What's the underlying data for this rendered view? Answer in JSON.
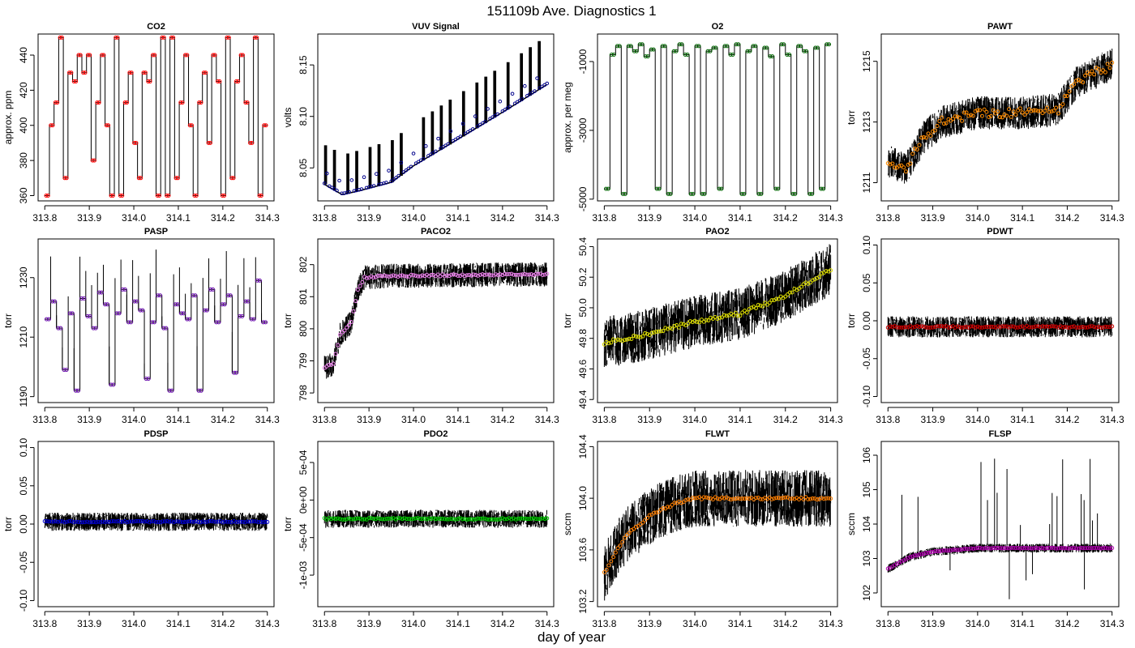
{
  "figure": {
    "title": "151109b   Ave. Diagnostics 1",
    "xlabel": "day of year"
  },
  "colors": {
    "frame": "#000000",
    "trace": "#000000"
  },
  "chart_data": [
    {
      "type": "line",
      "title": "CO2",
      "ylabel": "approx. ppm",
      "xlim": [
        313.785,
        314.315
      ],
      "ylim": [
        357,
        452
      ],
      "xticks": [
        {
          "v": 313.8,
          "l": "313.8"
        },
        {
          "v": 313.9,
          "l": "313.9"
        },
        {
          "v": 314.0,
          "l": "314.0"
        },
        {
          "v": 314.1,
          "l": "314.1"
        },
        {
          "v": 314.2,
          "l": "314.2"
        },
        {
          "v": 314.3,
          "l": "314.3"
        }
      ],
      "yticks": [
        {
          "v": 360,
          "l": "360"
        },
        {
          "v": 380,
          "l": "380"
        },
        {
          "v": 400,
          "l": "400"
        },
        {
          "v": 420,
          "l": "420"
        },
        {
          "v": 440,
          "l": "440"
        }
      ],
      "mean_color": "#ff0000",
      "trace": "step",
      "levels": [
        360,
        400,
        413,
        450,
        370,
        430,
        425,
        440,
        430,
        440,
        380,
        413,
        440,
        400,
        360,
        450,
        360,
        413,
        430,
        390,
        370,
        430,
        425,
        440,
        360,
        450,
        360,
        450,
        370,
        413,
        440,
        400,
        360,
        413,
        430,
        390,
        440,
        425,
        360,
        450,
        370,
        425,
        440,
        413,
        390,
        450,
        360,
        400
      ]
    },
    {
      "type": "line",
      "title": "VUV Signal",
      "ylabel": "volts",
      "xlim": [
        313.785,
        314.315
      ],
      "ylim": [
        8.018,
        8.18
      ],
      "xticks": [
        {
          "v": 313.8,
          "l": "313.8"
        },
        {
          "v": 313.9,
          "l": "313.9"
        },
        {
          "v": 314.0,
          "l": "314.0"
        },
        {
          "v": 314.1,
          "l": "314.1"
        },
        {
          "v": 314.2,
          "l": "314.2"
        },
        {
          "v": 314.3,
          "l": "314.3"
        }
      ],
      "yticks": [
        {
          "v": 8.05,
          "l": "8.05"
        },
        {
          "v": 8.1,
          "l": "8.10"
        },
        {
          "v": 8.15,
          "l": "8.15"
        }
      ],
      "mean_color": "#00008b",
      "trace": "vuv",
      "base": [
        [
          313.8,
          8.034
        ],
        [
          313.84,
          8.024
        ],
        [
          313.88,
          8.028
        ],
        [
          313.95,
          8.036
        ],
        [
          314.0,
          8.052
        ],
        [
          314.1,
          8.078
        ],
        [
          314.2,
          8.104
        ],
        [
          314.3,
          8.131
        ]
      ],
      "spike_times": [
        313.8,
        313.82,
        313.85,
        313.87,
        313.9,
        313.92,
        313.95,
        313.97,
        314.02,
        314.04,
        314.06,
        314.08,
        314.11,
        314.14,
        314.16,
        314.18,
        314.21,
        314.24,
        314.26,
        314.28
      ]
    },
    {
      "type": "line",
      "title": "O2",
      "ylabel": "approx. per meg",
      "xlim": [
        313.785,
        314.315
      ],
      "ylim": [
        -5050,
        -200
      ],
      "xticks": [
        {
          "v": 313.8,
          "l": "313.8"
        },
        {
          "v": 313.9,
          "l": "313.9"
        },
        {
          "v": 314.0,
          "l": "314.0"
        },
        {
          "v": 314.1,
          "l": "314.1"
        },
        {
          "v": 314.2,
          "l": "314.2"
        },
        {
          "v": 314.3,
          "l": "314.3"
        }
      ],
      "yticks": [
        {
          "v": -5000,
          "l": "-5000"
        },
        {
          "v": -3000,
          "l": "-3000"
        },
        {
          "v": -1000,
          "l": "-1000"
        }
      ],
      "mean_color": "#006400",
      "trace": "step",
      "levels": [
        -4700,
        -800,
        -550,
        -4850,
        -550,
        -700,
        -500,
        -850,
        -650,
        -4700,
        -550,
        -4850,
        -700,
        -500,
        -800,
        -4850,
        -550,
        -4850,
        -700,
        -600,
        -4700,
        -550,
        -800,
        -500,
        -4850,
        -700,
        -550,
        -4850,
        -600,
        -850,
        -4700,
        -500,
        -800,
        -4850,
        -550,
        -700,
        -4850,
        -600,
        -4700,
        -500
      ]
    },
    {
      "type": "line",
      "title": "PAWT",
      "ylabel": "torr",
      "xlim": [
        313.785,
        314.315
      ],
      "ylim": [
        1210.4,
        1215.9
      ],
      "xticks": [
        {
          "v": 313.8,
          "l": "313.8"
        },
        {
          "v": 313.9,
          "l": "313.9"
        },
        {
          "v": 314.0,
          "l": "314.0"
        },
        {
          "v": 314.1,
          "l": "314.1"
        },
        {
          "v": 314.2,
          "l": "314.2"
        },
        {
          "v": 314.3,
          "l": "314.3"
        }
      ],
      "yticks": [
        {
          "v": 1211,
          "l": "1211"
        },
        {
          "v": 1213,
          "l": "1213"
        },
        {
          "v": 1215,
          "l": "1215"
        }
      ],
      "mean_color": "#ff8c00",
      "trace": "noise",
      "noise": 0.55,
      "mean_noise": 0.15,
      "trend": [
        [
          313.8,
          1211.7
        ],
        [
          313.84,
          1211.5
        ],
        [
          313.88,
          1212.5
        ],
        [
          313.92,
          1213.0
        ],
        [
          314.0,
          1213.3
        ],
        [
          314.1,
          1213.3
        ],
        [
          314.18,
          1213.4
        ],
        [
          314.22,
          1214.3
        ],
        [
          314.3,
          1214.9
        ]
      ]
    },
    {
      "type": "line",
      "title": "PASP",
      "ylabel": "torr",
      "xlim": [
        313.785,
        314.315
      ],
      "ylim": [
        1188,
        1243
      ],
      "xticks": [
        {
          "v": 313.8,
          "l": "313.8"
        },
        {
          "v": 313.9,
          "l": "313.9"
        },
        {
          "v": 314.0,
          "l": "314.0"
        },
        {
          "v": 314.1,
          "l": "314.1"
        },
        {
          "v": 314.2,
          "l": "314.2"
        },
        {
          "v": 314.3,
          "l": "314.3"
        }
      ],
      "yticks": [
        {
          "v": 1190,
          "l": "1190"
        },
        {
          "v": 1210,
          "l": "1210"
        },
        {
          "v": 1230,
          "l": "1230"
        }
      ],
      "mean_color": "#6a0dad",
      "trace": "step",
      "spikes": true,
      "levels": [
        1216,
        1222,
        1213,
        1199,
        1218,
        1192,
        1223,
        1217,
        1213,
        1225,
        1221,
        1194,
        1218,
        1226,
        1215,
        1222,
        1219,
        1196,
        1215,
        1224,
        1213,
        1192,
        1221,
        1218,
        1216,
        1224,
        1192,
        1219,
        1226,
        1215,
        1221,
        1224,
        1198,
        1217,
        1222,
        1216,
        1229,
        1215
      ]
    },
    {
      "type": "line",
      "title": "PACO2",
      "ylabel": "torr",
      "xlim": [
        313.785,
        314.315
      ],
      "ylim": [
        797.7,
        802.8
      ],
      "xticks": [
        {
          "v": 313.8,
          "l": "313.8"
        },
        {
          "v": 313.9,
          "l": "313.9"
        },
        {
          "v": 314.0,
          "l": "314.0"
        },
        {
          "v": 314.1,
          "l": "314.1"
        },
        {
          "v": 314.2,
          "l": "314.2"
        },
        {
          "v": 314.3,
          "l": "314.3"
        }
      ],
      "yticks": [
        {
          "v": 798,
          "l": "798"
        },
        {
          "v": 799,
          "l": "799"
        },
        {
          "v": 800,
          "l": "800"
        },
        {
          "v": 801,
          "l": "801"
        },
        {
          "v": 802,
          "l": "802"
        }
      ],
      "mean_color": "#ee82ee",
      "trace": "noise",
      "noise": 0.38,
      "mean_noise": 0.03,
      "trend": [
        [
          313.8,
          798.8
        ],
        [
          313.82,
          798.9
        ],
        [
          313.835,
          799.8
        ],
        [
          313.86,
          800.2
        ],
        [
          313.875,
          801.2
        ],
        [
          313.89,
          801.6
        ],
        [
          313.95,
          801.65
        ],
        [
          314.3,
          801.7
        ]
      ]
    },
    {
      "type": "line",
      "title": "PAO2",
      "ylabel": "torr",
      "xlim": [
        313.785,
        314.315
      ],
      "ylim": [
        49.38,
        50.45
      ],
      "xticks": [
        {
          "v": 313.8,
          "l": "313.8"
        },
        {
          "v": 313.9,
          "l": "313.9"
        },
        {
          "v": 314.0,
          "l": "314.0"
        },
        {
          "v": 314.1,
          "l": "314.1"
        },
        {
          "v": 314.2,
          "l": "314.2"
        },
        {
          "v": 314.3,
          "l": "314.3"
        }
      ],
      "yticks": [
        {
          "v": 49.4,
          "l": "49.4"
        },
        {
          "v": 49.6,
          "l": "49.6"
        },
        {
          "v": 49.8,
          "l": "49.8"
        },
        {
          "v": 50.0,
          "l": "50.0"
        },
        {
          "v": 50.2,
          "l": "50.2"
        },
        {
          "v": 50.4,
          "l": "50.4"
        }
      ],
      "mean_color": "#dddd00",
      "trace": "noise",
      "noise": 0.17,
      "mean_noise": 0.012,
      "trend": [
        [
          313.8,
          49.77
        ],
        [
          313.9,
          49.83
        ],
        [
          314.0,
          49.91
        ],
        [
          314.1,
          49.96
        ],
        [
          314.2,
          50.08
        ],
        [
          314.3,
          50.25
        ]
      ]
    },
    {
      "type": "line",
      "title": "PDWT",
      "ylabel": "torr",
      "xlim": [
        313.785,
        314.315
      ],
      "ylim": [
        -0.108,
        0.108
      ],
      "xticks": [
        {
          "v": 313.8,
          "l": "313.8"
        },
        {
          "v": 313.9,
          "l": "313.9"
        },
        {
          "v": 314.0,
          "l": "314.0"
        },
        {
          "v": 314.1,
          "l": "314.1"
        },
        {
          "v": 314.2,
          "l": "314.2"
        },
        {
          "v": 314.3,
          "l": "314.3"
        }
      ],
      "yticks": [
        {
          "v": -0.1,
          "l": "-0.10"
        },
        {
          "v": -0.05,
          "l": "-0.05"
        },
        {
          "v": 0.0,
          "l": "0.00"
        },
        {
          "v": 0.05,
          "l": "0.05"
        },
        {
          "v": 0.1,
          "l": "0.10"
        }
      ],
      "mean_color": "#cc0000",
      "trace": "noise",
      "noise": 0.014,
      "mean_noise": 0.001,
      "trend": [
        [
          313.8,
          -0.008
        ],
        [
          314.3,
          -0.008
        ]
      ]
    },
    {
      "type": "line",
      "title": "PDSP",
      "ylabel": "torr",
      "xlim": [
        313.785,
        314.315
      ],
      "ylim": [
        -0.108,
        0.108
      ],
      "xticks": [
        {
          "v": 313.8,
          "l": "313.8"
        },
        {
          "v": 313.9,
          "l": "313.9"
        },
        {
          "v": 314.0,
          "l": "314.0"
        },
        {
          "v": 314.1,
          "l": "314.1"
        },
        {
          "v": 314.2,
          "l": "314.2"
        },
        {
          "v": 314.3,
          "l": "314.3"
        }
      ],
      "yticks": [
        {
          "v": -0.1,
          "l": "-0.10"
        },
        {
          "v": -0.05,
          "l": "-0.05"
        },
        {
          "v": 0.0,
          "l": "0.00"
        },
        {
          "v": 0.05,
          "l": "0.05"
        },
        {
          "v": 0.1,
          "l": "0.10"
        }
      ],
      "mean_color": "#0000cc",
      "trace": "noise",
      "noise": 0.012,
      "mean_noise": 0.0008,
      "trend": [
        [
          313.8,
          0.003
        ],
        [
          314.3,
          0.003
        ]
      ]
    },
    {
      "type": "line",
      "title": "PDO2",
      "ylabel": "torr",
      "xlim": [
        313.785,
        314.315
      ],
      "ylim": [
        -0.00142,
        0.00078
      ],
      "xticks": [
        {
          "v": 313.8,
          "l": "313.8"
        },
        {
          "v": 313.9,
          "l": "313.9"
        },
        {
          "v": 314.0,
          "l": "314.0"
        },
        {
          "v": 314.1,
          "l": "314.1"
        },
        {
          "v": 314.2,
          "l": "314.2"
        },
        {
          "v": 314.3,
          "l": "314.3"
        }
      ],
      "yticks": [
        {
          "v": -0.001,
          "l": "-1e-03"
        },
        {
          "v": -0.0005,
          "l": "-5e-04"
        },
        {
          "v": 0.0,
          "l": "0e+00"
        },
        {
          "v": 0.0005,
          "l": "5e-04"
        }
      ],
      "mean_color": "#00cc00",
      "trace": "noise",
      "noise": 0.00012,
      "mean_noise": 1e-05,
      "trend": [
        [
          313.8,
          -0.00025
        ],
        [
          314.3,
          -0.00025
        ]
      ]
    },
    {
      "type": "line",
      "title": "FLWT",
      "ylabel": "sccm",
      "xlim": [
        313.785,
        314.315
      ],
      "ylim": [
        103.16,
        104.44
      ],
      "xticks": [
        {
          "v": 313.8,
          "l": "313.8"
        },
        {
          "v": 313.9,
          "l": "313.9"
        },
        {
          "v": 314.0,
          "l": "314.0"
        },
        {
          "v": 314.1,
          "l": "314.1"
        },
        {
          "v": 314.2,
          "l": "314.2"
        },
        {
          "v": 314.3,
          "l": "314.3"
        }
      ],
      "yticks": [
        {
          "v": 103.2,
          "l": "103.2"
        },
        {
          "v": 103.6,
          "l": "103.6"
        },
        {
          "v": 104.0,
          "l": "104.0"
        },
        {
          "v": 104.4,
          "l": "104.4"
        }
      ],
      "mean_color": "#ff7f00",
      "trace": "noise",
      "noise": 0.22,
      "mean_noise": 0.01,
      "trend": [
        [
          313.8,
          103.42
        ],
        [
          313.83,
          103.62
        ],
        [
          313.86,
          103.75
        ],
        [
          313.9,
          103.86
        ],
        [
          313.95,
          103.95
        ],
        [
          314.0,
          104.0
        ],
        [
          314.3,
          104.0
        ]
      ]
    },
    {
      "type": "line",
      "title": "FLSP",
      "ylabel": "sccm",
      "xlim": [
        313.785,
        314.315
      ],
      "ylim": [
        101.6,
        106.4
      ],
      "xticks": [
        {
          "v": 313.8,
          "l": "313.8"
        },
        {
          "v": 313.9,
          "l": "313.9"
        },
        {
          "v": 314.0,
          "l": "314.0"
        },
        {
          "v": 314.1,
          "l": "314.1"
        },
        {
          "v": 314.2,
          "l": "314.2"
        },
        {
          "v": 314.3,
          "l": "314.3"
        }
      ],
      "yticks": [
        {
          "v": 102,
          "l": "102"
        },
        {
          "v": 103,
          "l": "103"
        },
        {
          "v": 104,
          "l": "104"
        },
        {
          "v": 105,
          "l": "105"
        },
        {
          "v": 106,
          "l": "106"
        }
      ],
      "mean_color": "#b000b0",
      "trace": "noise",
      "noise": 0.13,
      "mean_noise": 0.01,
      "spikes": true,
      "trend": [
        [
          313.8,
          102.7
        ],
        [
          313.85,
          103.05
        ],
        [
          313.9,
          103.2
        ],
        [
          314.0,
          103.3
        ],
        [
          314.3,
          103.3
        ]
      ]
    }
  ]
}
